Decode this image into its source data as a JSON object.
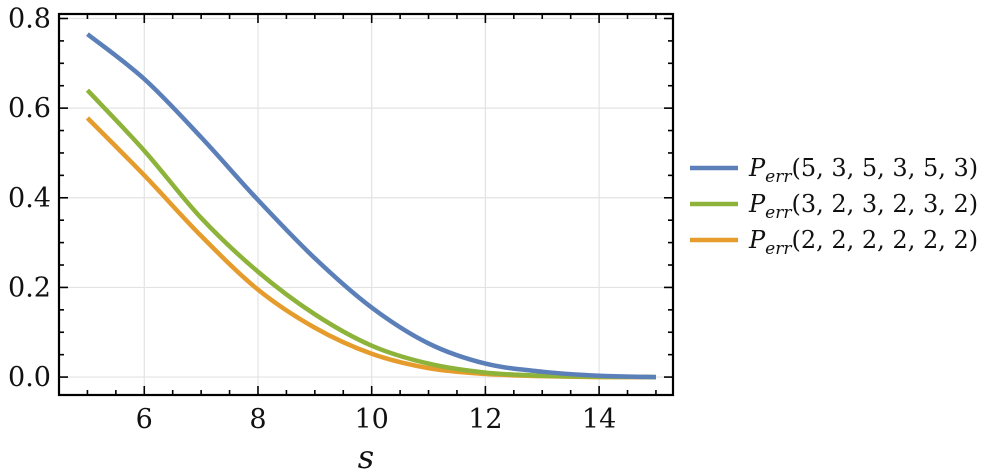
{
  "chart_data": {
    "type": "line",
    "title": "",
    "xlabel": "s",
    "ylabel": "",
    "xlim": [
      4.5,
      15.3
    ],
    "ylim": [
      -0.04,
      0.81
    ],
    "xticks": [
      6,
      8,
      10,
      12,
      14
    ],
    "yticks": [
      0.0,
      0.2,
      0.4,
      0.6,
      0.8
    ],
    "x_tick_labels": [
      "6",
      "8",
      "10",
      "12",
      "14"
    ],
    "y_tick_labels": [
      "0.0",
      "0.2",
      "0.4",
      "0.6",
      "0.8"
    ],
    "grid": true,
    "legend_position": "right",
    "x": [
      5,
      6,
      7,
      8,
      9,
      10,
      11,
      12,
      13,
      14,
      15
    ],
    "series": [
      {
        "name": "(5, 3, 5, 3, 5, 3)",
        "name_prefix": "P",
        "name_subscript": "err",
        "color": "#5b7fb8",
        "values": [
          0.765,
          0.665,
          0.535,
          0.395,
          0.265,
          0.155,
          0.075,
          0.03,
          0.012,
          0.003,
          0.0
        ]
      },
      {
        "name": "(3, 2, 3, 2, 3, 2)",
        "name_prefix": "P",
        "name_subscript": "err",
        "color": "#8db33a",
        "values": [
          0.64,
          0.505,
          0.355,
          0.235,
          0.14,
          0.07,
          0.03,
          0.01,
          0.003,
          0.001,
          0.0
        ]
      },
      {
        "name": "(2, 2, 2, 2, 2, 2)",
        "name_prefix": "P",
        "name_subscript": "err",
        "color": "#e59c2c",
        "values": [
          0.578,
          0.45,
          0.315,
          0.195,
          0.11,
          0.052,
          0.02,
          0.007,
          0.002,
          0.0,
          0.0
        ]
      }
    ]
  }
}
